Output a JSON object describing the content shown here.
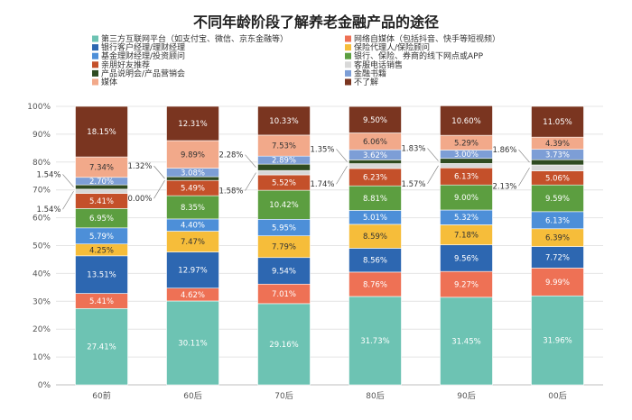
{
  "chart_data": {
    "type": "bar",
    "stacked": true,
    "title": "不同年龄阶段了解养老金融产品的途径",
    "categories": [
      "60前",
      "60后",
      "70后",
      "80后",
      "90后",
      "00后"
    ],
    "ylim": [
      0,
      100
    ],
    "y_ticks": [
      "0%",
      "10%",
      "20%",
      "30%",
      "40%",
      "50%",
      "60%",
      "70%",
      "80%",
      "90%",
      "100%"
    ],
    "grid": true,
    "legend_position": "top",
    "series": [
      {
        "name": "第三方互联网平台（如支付宝、微信、京东金融等）",
        "color": "#6dc3b3",
        "values": [
          27.41,
          30.11,
          29.16,
          31.73,
          31.45,
          31.96
        ],
        "labels": [
          "27.41%",
          "30.11%",
          "29.16%",
          "31.73%",
          "31.45%",
          "31.96%"
        ]
      },
      {
        "name": "网络自媒体（包括抖音、快手等短视频）",
        "color": "#ee7155",
        "values": [
          5.41,
          4.62,
          7.01,
          8.76,
          9.27,
          9.99
        ],
        "labels": [
          "5.41%",
          "4.62%",
          "7.01%",
          "8.76%",
          "9.27%",
          "9.99%"
        ]
      },
      {
        "name": "银行客户经理/理财经理",
        "color": "#2d67b1",
        "values": [
          13.51,
          12.97,
          9.54,
          8.56,
          9.56,
          7.72
        ],
        "labels": [
          "13.51%",
          "12.97%",
          "9.54%",
          "8.56%",
          "9.56%",
          "7.72%"
        ]
      },
      {
        "name": "保险代理人/保险顾问",
        "color": "#f6bd3a",
        "values": [
          4.25,
          7.47,
          7.79,
          8.59,
          7.18,
          6.39
        ],
        "labels": [
          "4.25%",
          "7.47%",
          "7.79%",
          "8.59%",
          "7.18%",
          "6.39%"
        ]
      },
      {
        "name": "基金理财经理/投资顾问",
        "color": "#4d8fd8",
        "values": [
          5.79,
          4.4,
          5.95,
          5.01,
          5.32,
          6.13
        ],
        "labels": [
          "5.79%",
          "4.40%",
          "5.95%",
          "5.01%",
          "5.32%",
          "6.13%"
        ]
      },
      {
        "name": "银行、保险、券商的线下网点或APP",
        "color": "#5c9e40",
        "values": [
          6.95,
          8.35,
          10.42,
          8.81,
          9.0,
          9.59
        ],
        "labels": [
          "6.95%",
          "8.35%",
          "10.42%",
          "8.81%",
          "9.00%",
          "9.59%"
        ]
      },
      {
        "name": "亲朋好友推荐",
        "color": "#c4502a",
        "values": [
          5.41,
          5.49,
          5.52,
          6.23,
          6.13,
          5.06
        ],
        "labels": [
          "5.41%",
          "5.49%",
          "5.52%",
          "6.23%",
          "6.13%",
          "5.06%"
        ]
      },
      {
        "name": "客服电话销售",
        "color": "#d8d8d8",
        "values": [
          1.54,
          0.0,
          1.58,
          1.74,
          1.57,
          2.13
        ],
        "labels": [
          "1.54%",
          "0.00%",
          "1.58%",
          "1.74%",
          "1.57%",
          "2.13%"
        ]
      },
      {
        "name": "产品说明会/产品营销会",
        "color": "#2f4b21",
        "values": [
          1.54,
          1.32,
          2.28,
          1.35,
          1.83,
          1.86
        ],
        "labels": [
          "1.54%",
          "1.32%",
          "2.28%",
          "1.35%",
          "1.83%",
          "1.86%"
        ]
      },
      {
        "name": "金融书籍",
        "color": "#7d9ed6",
        "values": [
          2.7,
          3.08,
          2.89,
          3.62,
          3.0,
          3.73
        ],
        "labels": [
          "2.70%",
          "3.08%",
          "2.89%",
          "3.62%",
          "3.00%",
          "3.73%"
        ]
      },
      {
        "name": "媒体",
        "color": "#f2a98a",
        "values": [
          7.34,
          9.89,
          7.53,
          6.06,
          5.29,
          4.39
        ],
        "labels": [
          "7.34%",
          "9.89%",
          "7.53%",
          "6.06%",
          "5.29%",
          "4.39%"
        ]
      },
      {
        "name": "不了解",
        "color": "#7a3520",
        "values": [
          18.15,
          12.31,
          10.33,
          9.5,
          10.6,
          11.05
        ],
        "labels": [
          "18.15%",
          "12.31%",
          "10.33%",
          "9.50%",
          "10.60%",
          "11.05%"
        ]
      }
    ]
  }
}
